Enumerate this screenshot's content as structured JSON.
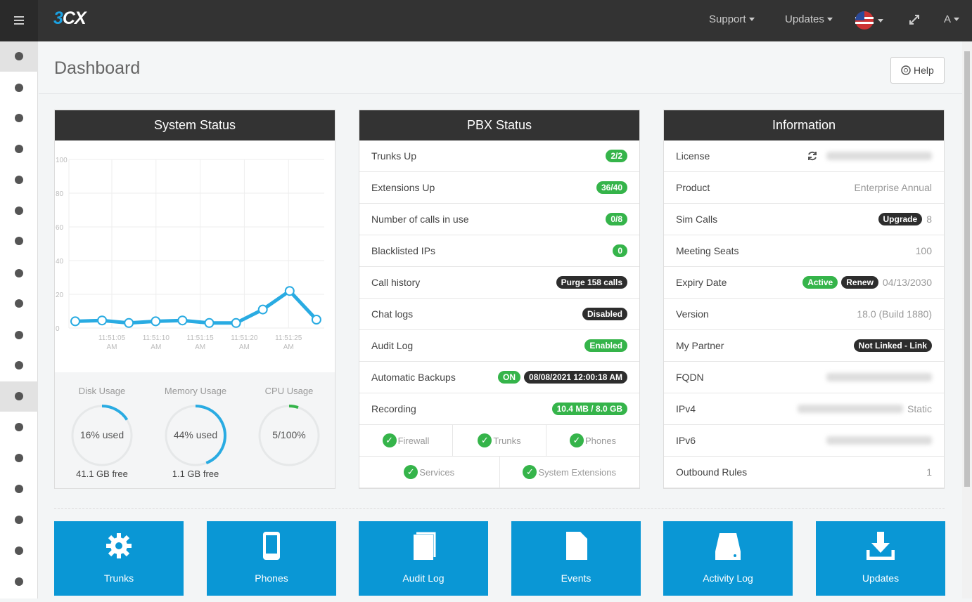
{
  "header": {
    "logo": "3CX",
    "menu": [
      "Support",
      "Updates",
      "A"
    ]
  },
  "page": {
    "title": "Dashboard",
    "help": "Help"
  },
  "system_status": {
    "title": "System Status",
    "chart_data": {
      "type": "line",
      "xticks": [
        "11:51:05 AM",
        "11:51:10 AM",
        "11:51:15 AM",
        "11:51:20 AM",
        "11:51:25 AM"
      ],
      "values": [
        4,
        4.5,
        3,
        4,
        4.5,
        3,
        3,
        11,
        22,
        5
      ],
      "color": "#29abe2",
      "ylim": [
        0,
        100
      ],
      "yticks": [
        0,
        20,
        40,
        60,
        80,
        100
      ],
      "grid": true
    },
    "gauges": [
      {
        "label": "Disk Usage",
        "value": 16,
        "value_label": "16% used",
        "free": "41.1 GB free"
      },
      {
        "label": "Memory Usage",
        "value": 44,
        "value_label": "44% used",
        "free": "1.1 GB free"
      },
      {
        "label": "CPU Usage",
        "value": 5,
        "value_label": "5/100%"
      }
    ]
  },
  "pbx": {
    "title": "PBX Status",
    "rows": [
      {
        "label": "Trunks Up",
        "badges": [
          {
            "text": "2/2",
            "color": "#35b44a"
          }
        ]
      },
      {
        "label": "Extensions Up",
        "badges": [
          {
            "text": "36/40",
            "color": "#35b44a"
          }
        ]
      },
      {
        "label": "Number of calls in use",
        "badges": [
          {
            "text": "0/8",
            "color": "#35b44a"
          }
        ]
      },
      {
        "label": "Blacklisted IPs",
        "badges": [
          {
            "text": "0",
            "color": "#35b44a"
          }
        ]
      },
      {
        "label": "Call history",
        "badges": [
          {
            "text": "Purge 158 calls",
            "color": "#2d2d2d"
          }
        ]
      },
      {
        "label": "Chat logs",
        "badges": [
          {
            "text": "Disabled",
            "color": "#2d2d2d"
          }
        ]
      },
      {
        "label": "Audit Log",
        "badges": [
          {
            "text": "Enabled",
            "color": "#35b44a"
          }
        ]
      },
      {
        "label": "Automatic Backups",
        "badges": [
          {
            "text": "ON",
            "color": "#35b44a"
          },
          {
            "text": "08/08/2021 12:00:18 AM",
            "color": "#2d2d2d"
          }
        ]
      },
      {
        "label": "Recording",
        "badges": [
          {
            "text": "10.4 MB / 8.0 GB",
            "color": "#35b44a"
          }
        ]
      }
    ],
    "checks": [
      [
        "Firewall",
        "Trunks",
        "Phones"
      ],
      [
        "Services",
        "System Extensions"
      ]
    ]
  },
  "info": {
    "title": "Information",
    "rows": [
      {
        "label": "License",
        "blurred": true,
        "refresh_icon": true
      },
      {
        "label": "Product",
        "value": "Enterprise Annual"
      },
      {
        "label": "Sim Calls",
        "badges": [
          {
            "text": "Upgrade",
            "color": "#2d2d2d"
          }
        ],
        "value": "8"
      },
      {
        "label": "Meeting Seats",
        "value": "100"
      },
      {
        "label": "Expiry Date",
        "badges": [
          {
            "text": "Active",
            "color": "#35b44a"
          },
          {
            "text": "Renew",
            "color": "#2d2d2d"
          }
        ],
        "value": "04/13/2030"
      },
      {
        "label": "Version",
        "value": "18.0 (Build 1880)"
      },
      {
        "label": "My Partner",
        "badges": [
          {
            "text": "Not Linked - Link",
            "color": "#2d2d2d"
          }
        ]
      },
      {
        "label": "FQDN",
        "blurred": true
      },
      {
        "label": "IPv4",
        "blurred": true,
        "value": "Static"
      },
      {
        "label": "IPv6",
        "blurred": true
      },
      {
        "label": "Outbound Rules",
        "value": "1"
      }
    ]
  },
  "tiles": [
    "Trunks",
    "Phones",
    "Audit Log",
    "Events",
    "Activity Log",
    "Updates"
  ]
}
